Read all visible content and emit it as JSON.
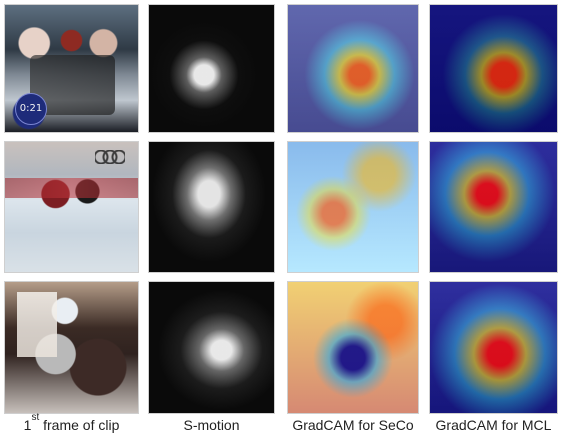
{
  "tiles": {
    "row1": {
      "overlay_timer": "0:21"
    }
  },
  "captions": {
    "col1": {
      "prefix": "1",
      "sup": "st",
      "suffix": " frame of clip"
    },
    "col2": "S-motion",
    "col3": "GradCAM for SeCo",
    "col4": "GradCAM for MCL"
  }
}
